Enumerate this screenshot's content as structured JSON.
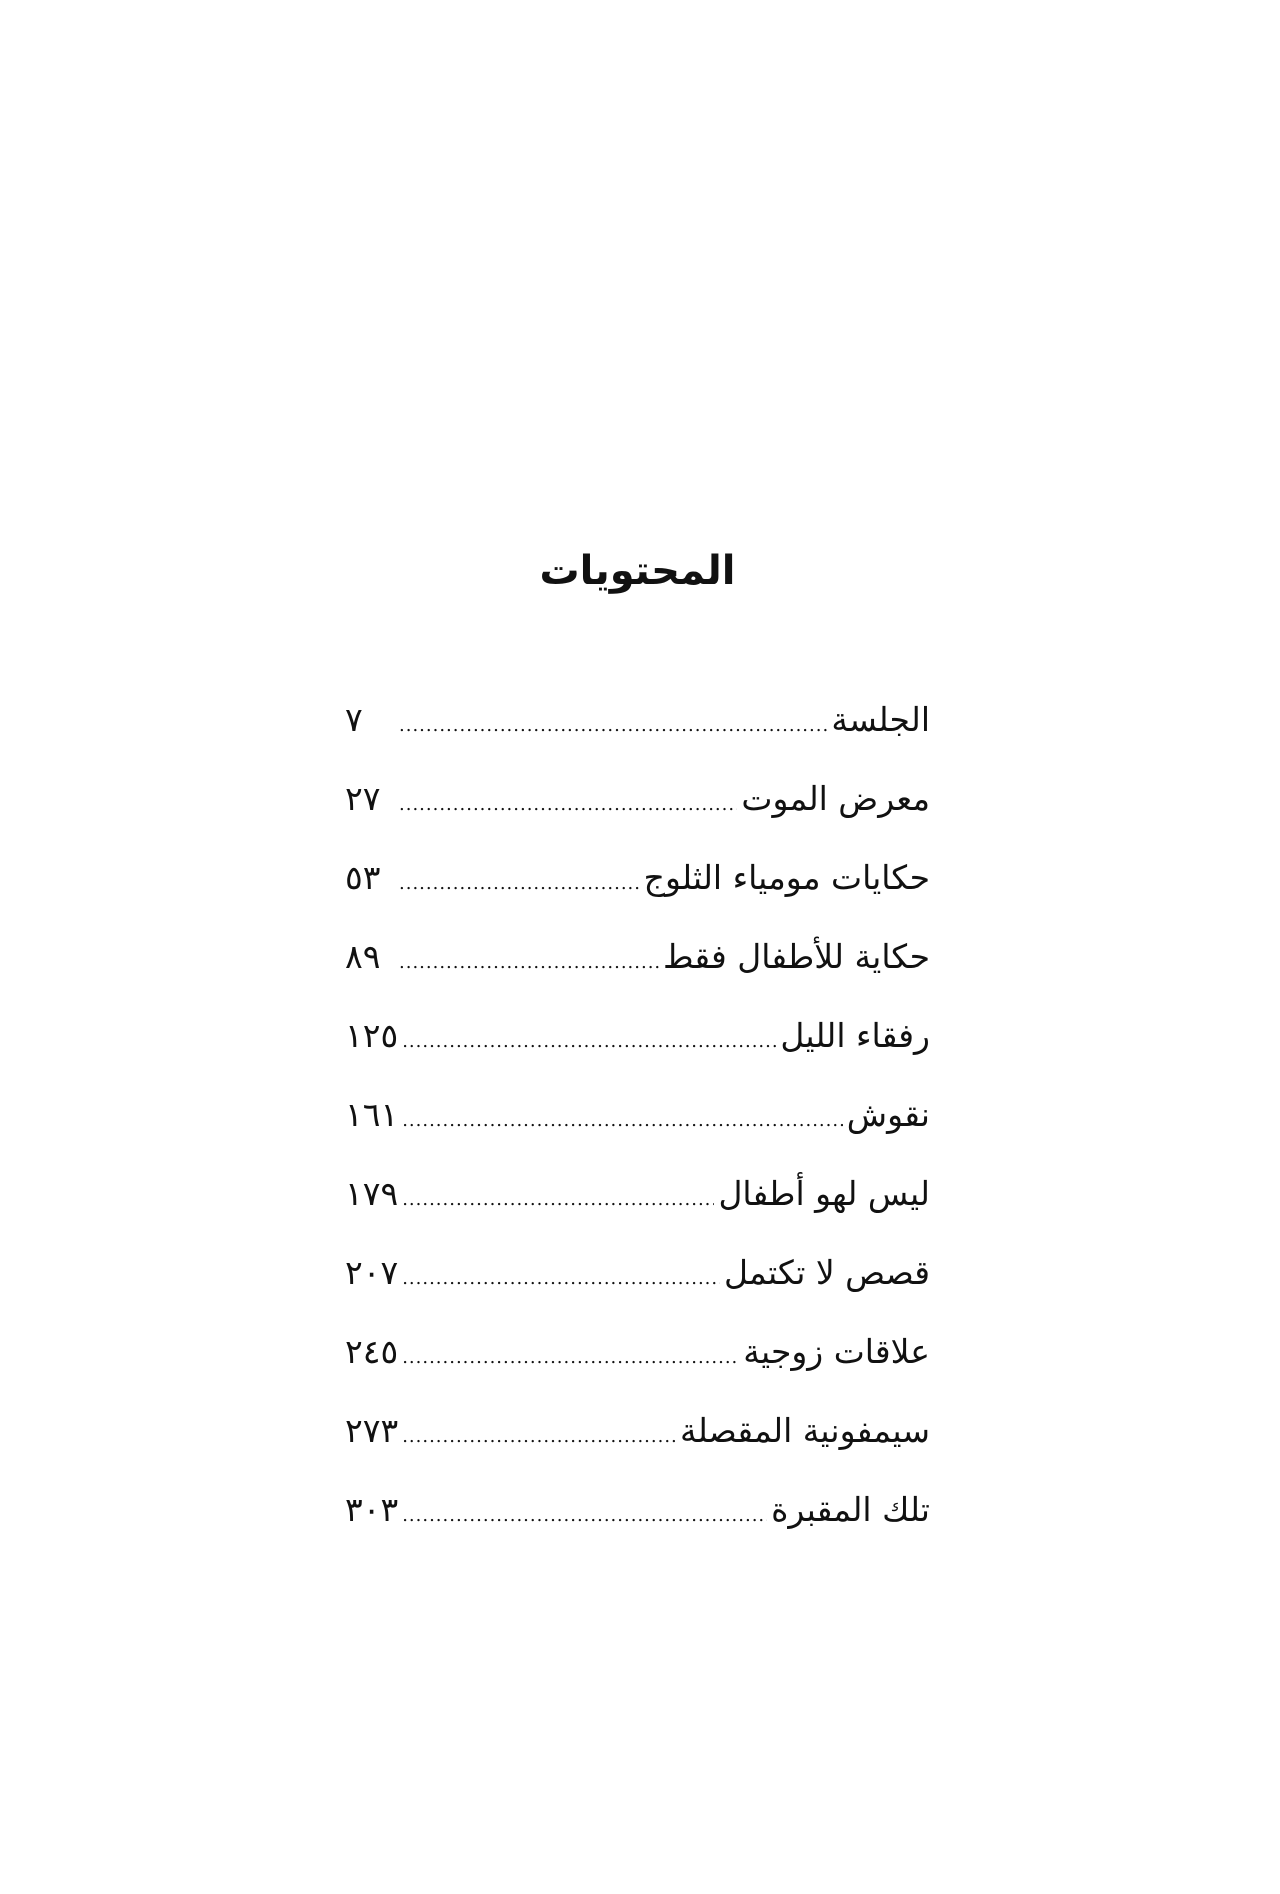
{
  "title": "المحتويات",
  "entries": [
    {
      "title": "الجلسة",
      "page": "٧"
    },
    {
      "title": "معرض الموت",
      "page": "٢٧"
    },
    {
      "title": "حكايات مومياء الثلوج",
      "page": "٥٣"
    },
    {
      "title": "حكاية للأطفال فقط",
      "page": "٨٩"
    },
    {
      "title": "رفقاء الليل",
      "page": "١٢٥"
    },
    {
      "title": "نقوش",
      "page": "١٦١"
    },
    {
      "title": "ليس لهو أطفال",
      "page": "١٧٩"
    },
    {
      "title": "قصص لا تكتمل",
      "page": "٢٠٧"
    },
    {
      "title": "علاقات زوجية",
      "page": "٢٤٥"
    },
    {
      "title": "سيمفونية المقصلة",
      "page": "٢٧٣"
    },
    {
      "title": "تلك المقبرة",
      "page": "٣٠٣"
    }
  ]
}
